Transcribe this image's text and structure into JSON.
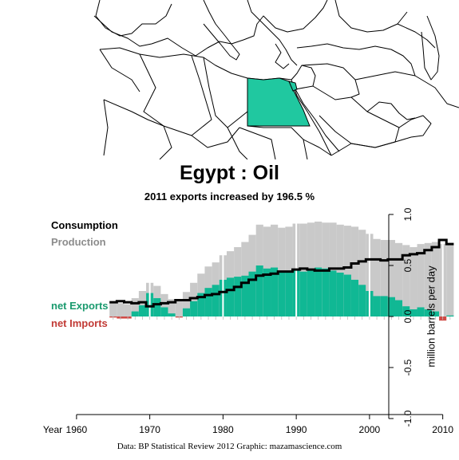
{
  "title": "Egypt :  Oil",
  "subtitle": "2011 exports increased by 196.5 %",
  "credits": "Data: BP Statistical Review 2012    Graphic: mazamascience.com",
  "colors": {
    "production": "#c9c9c9",
    "consumption": "#000000",
    "exports": "#10b894",
    "imports": "#d04a45",
    "highlight_country": "#20c8a0",
    "decade_lines": "#ffffff"
  },
  "chart_data": {
    "type": "area",
    "title": "",
    "legend": [
      "Consumption",
      "Production",
      "net Exports",
      "net Imports"
    ],
    "xlabel": "Year",
    "ylabel": "million barrels per day",
    "xlim": [
      1955,
      2012
    ],
    "ylim": [
      -1.0,
      1.0
    ],
    "x_ticks": [
      1960,
      1970,
      1980,
      1990,
      2000,
      2010
    ],
    "y_ticks": [
      "-1.0",
      "-0.5",
      "0.0",
      "0.5",
      "1.0"
    ],
    "x": [
      1965,
      1966,
      1967,
      1968,
      1969,
      1970,
      1971,
      1972,
      1973,
      1974,
      1975,
      1976,
      1977,
      1978,
      1979,
      1980,
      1981,
      1982,
      1983,
      1984,
      1985,
      1986,
      1987,
      1988,
      1989,
      1990,
      1991,
      1992,
      1993,
      1994,
      1995,
      1996,
      1997,
      1998,
      1999,
      2000,
      2001,
      2002,
      2003,
      2004,
      2005,
      2006,
      2007,
      2008,
      2009,
      2010,
      2011
    ],
    "series": [
      {
        "name": "Production",
        "values": [
          0.13,
          0.13,
          0.12,
          0.18,
          0.25,
          0.33,
          0.3,
          0.22,
          0.17,
          0.15,
          0.24,
          0.33,
          0.42,
          0.49,
          0.53,
          0.6,
          0.64,
          0.68,
          0.73,
          0.8,
          0.9,
          0.88,
          0.9,
          0.87,
          0.88,
          0.91,
          0.91,
          0.92,
          0.93,
          0.92,
          0.92,
          0.9,
          0.89,
          0.88,
          0.85,
          0.81,
          0.76,
          0.75,
          0.75,
          0.72,
          0.7,
          0.68,
          0.71,
          0.72,
          0.73,
          0.71,
          0.72
        ]
      },
      {
        "name": "Consumption",
        "values": [
          0.14,
          0.15,
          0.14,
          0.13,
          0.14,
          0.1,
          0.12,
          0.13,
          0.14,
          0.16,
          0.16,
          0.18,
          0.19,
          0.21,
          0.22,
          0.24,
          0.26,
          0.29,
          0.33,
          0.36,
          0.4,
          0.41,
          0.42,
          0.44,
          0.44,
          0.46,
          0.47,
          0.46,
          0.45,
          0.45,
          0.47,
          0.47,
          0.48,
          0.52,
          0.54,
          0.56,
          0.56,
          0.55,
          0.56,
          0.56,
          0.6,
          0.61,
          0.62,
          0.65,
          0.68,
          0.75,
          0.71
        ]
      },
      {
        "name": "net Exports",
        "values": [
          0.0,
          0.0,
          0.0,
          0.05,
          0.11,
          0.23,
          0.18,
          0.09,
          0.03,
          0.0,
          0.08,
          0.15,
          0.23,
          0.28,
          0.31,
          0.36,
          0.38,
          0.39,
          0.4,
          0.44,
          0.5,
          0.47,
          0.48,
          0.43,
          0.44,
          0.45,
          0.44,
          0.46,
          0.48,
          0.47,
          0.45,
          0.43,
          0.41,
          0.36,
          0.31,
          0.25,
          0.2,
          0.2,
          0.19,
          0.16,
          0.1,
          0.07,
          0.09,
          0.07,
          0.05,
          0.0,
          0.01
        ]
      },
      {
        "name": "net Imports",
        "values": [
          0.01,
          0.02,
          0.02,
          0.0,
          0.0,
          0.0,
          0.0,
          0.0,
          0.0,
          0.01,
          0.0,
          0.0,
          0.0,
          0.0,
          0.0,
          0.0,
          0.0,
          0.0,
          0.0,
          0.0,
          0.0,
          0.0,
          0.0,
          0.0,
          0.0,
          0.0,
          0.0,
          0.0,
          0.0,
          0.0,
          0.0,
          0.0,
          0.0,
          0.0,
          0.0,
          0.0,
          0.0,
          0.0,
          0.0,
          0.0,
          0.0,
          0.0,
          0.0,
          0.0,
          0.0,
          0.04,
          0.0
        ]
      }
    ],
    "grid": false,
    "legend_position": "left"
  }
}
